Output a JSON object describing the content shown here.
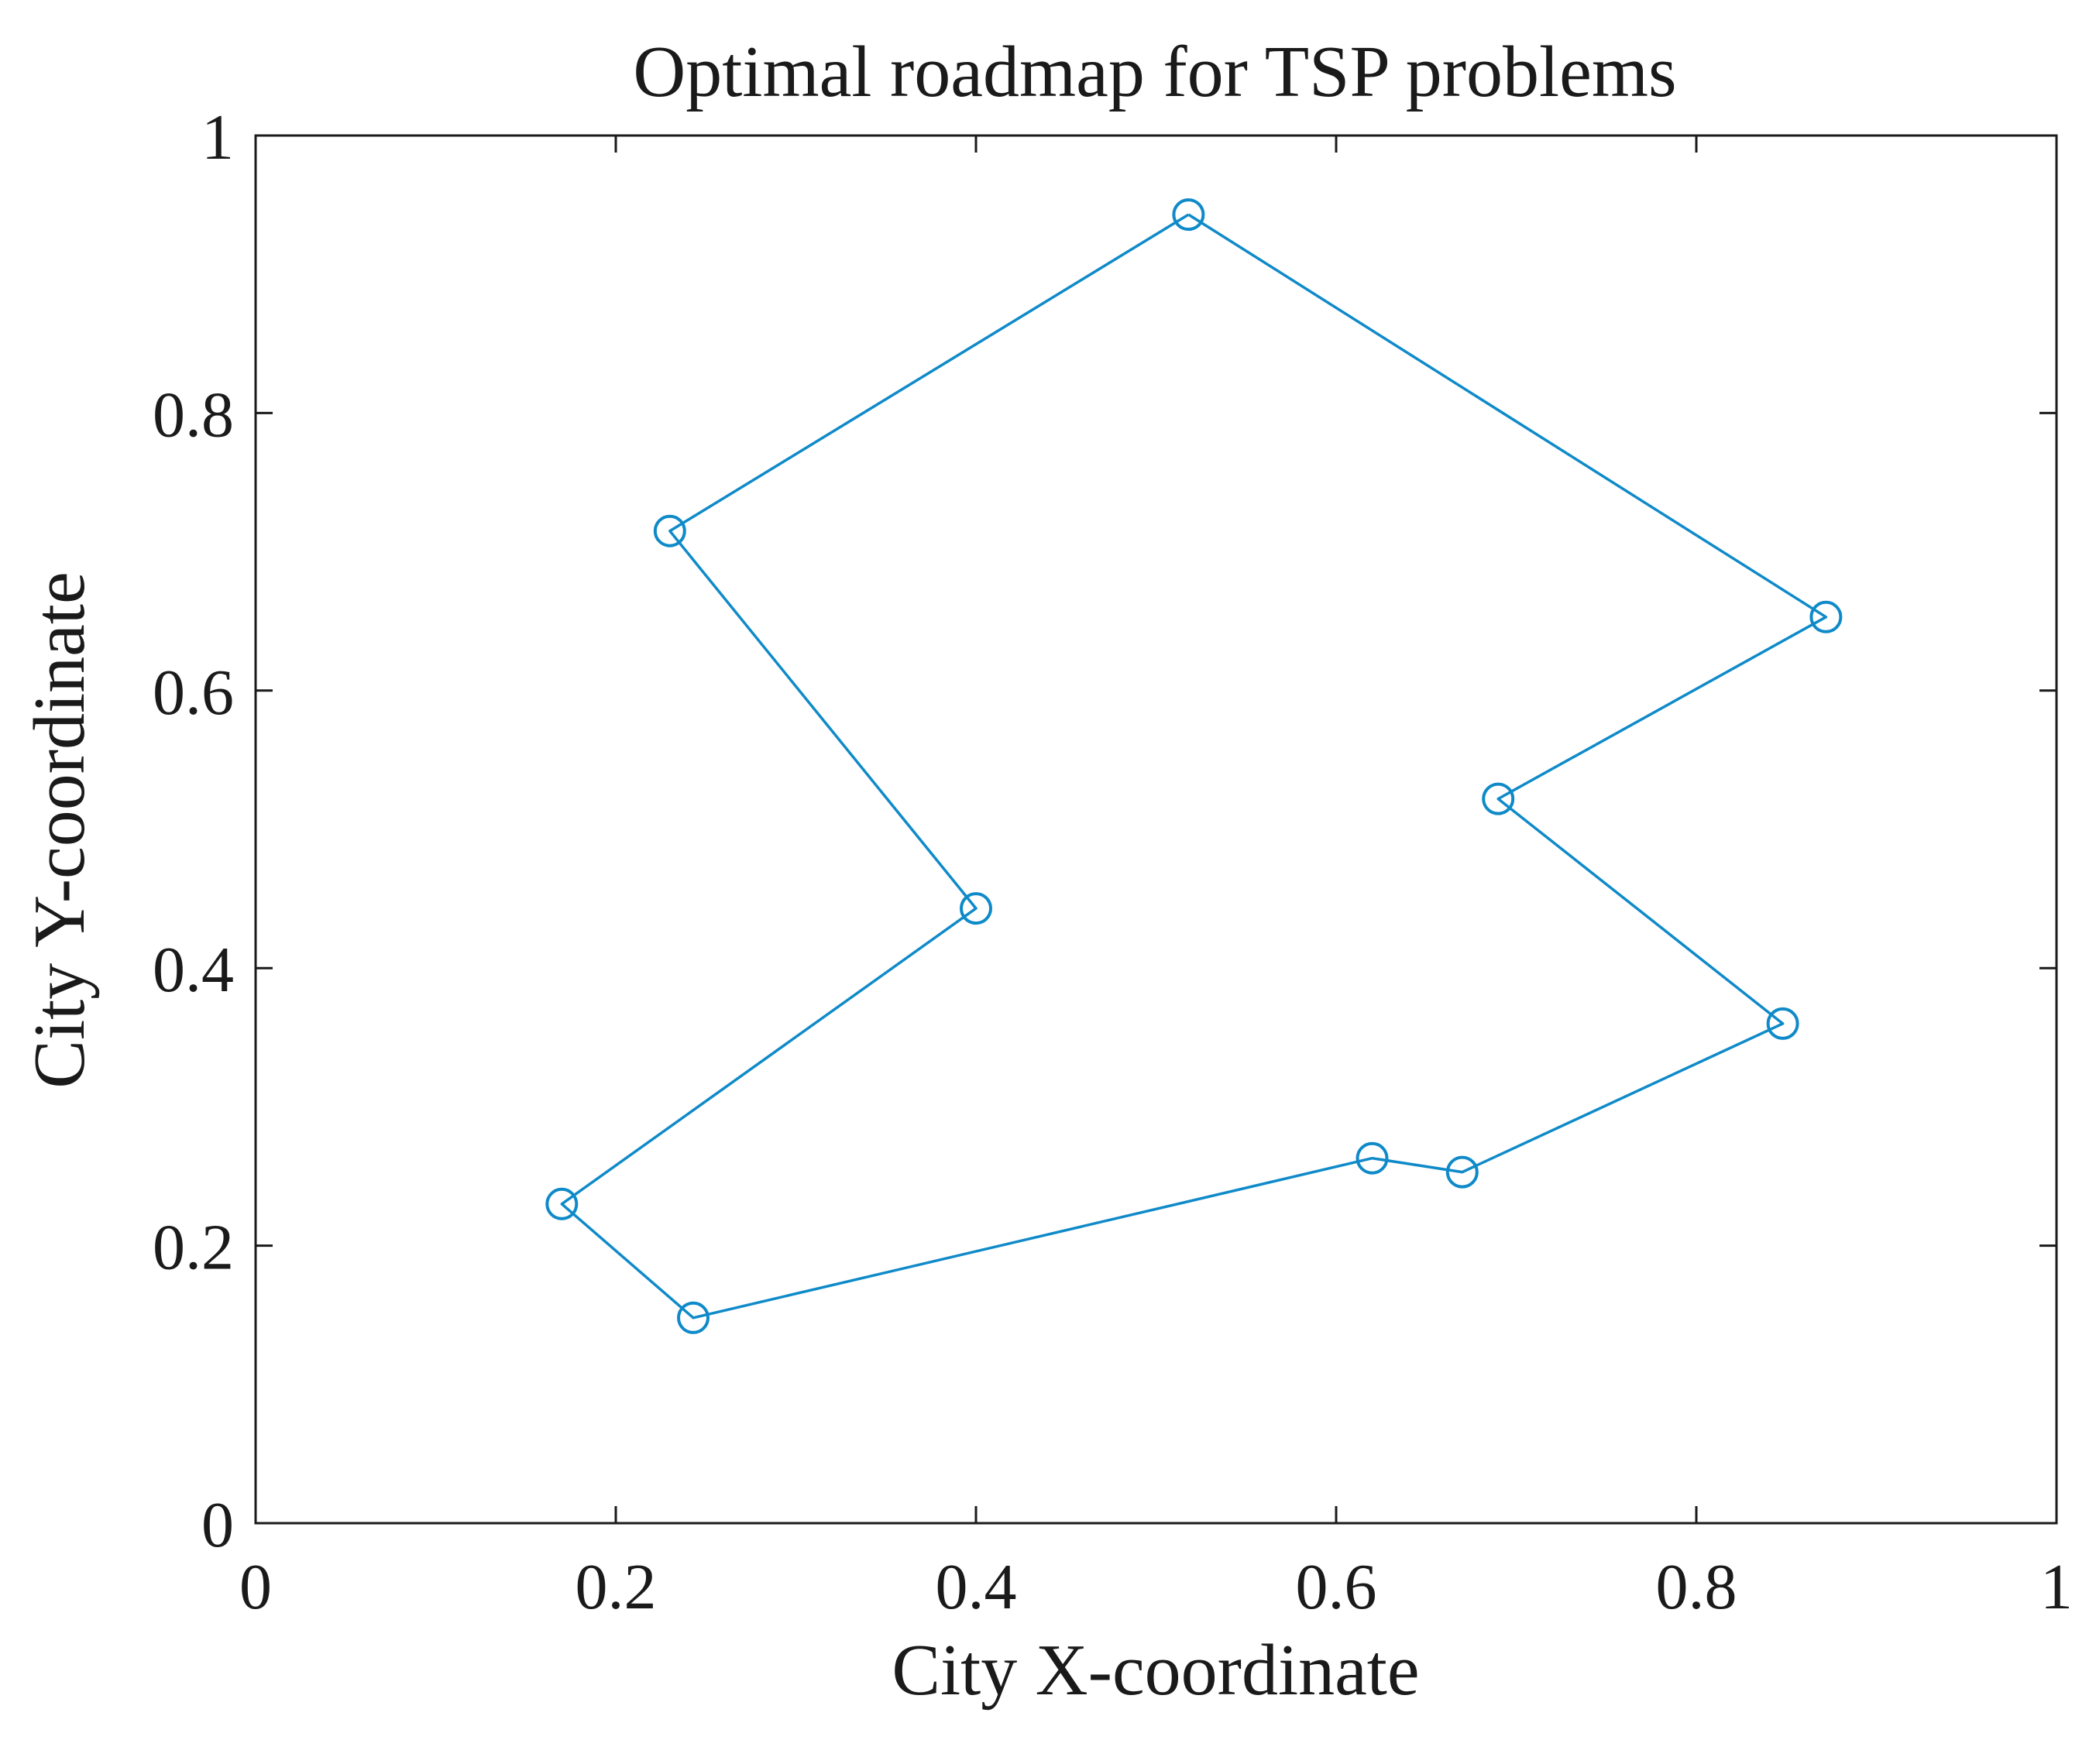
{
  "chart_data": {
    "type": "line",
    "title": "Optimal roadmap for TSP problems",
    "xlabel": "City X-coordinate",
    "ylabel": "City Y-coordinate",
    "xlim": [
      0,
      1
    ],
    "ylim": [
      0,
      1
    ],
    "xticks": [
      "0",
      "0.2",
      "0.4",
      "0.6",
      "0.8",
      "1"
    ],
    "yticks": [
      "0",
      "0.2",
      "0.4",
      "0.6",
      "0.8",
      "1"
    ],
    "grid": false,
    "marker": "circle",
    "line_color": "#0f8ac9",
    "series": [
      {
        "x": [
          0.518,
          0.872,
          0.69,
          0.848,
          0.67,
          0.62,
          0.243,
          0.17,
          0.4,
          0.23,
          0.518
        ],
        "y": [
          0.943,
          0.653,
          0.522,
          0.36,
          0.253,
          0.263,
          0.148,
          0.23,
          0.443,
          0.715,
          0.943
        ]
      }
    ]
  }
}
